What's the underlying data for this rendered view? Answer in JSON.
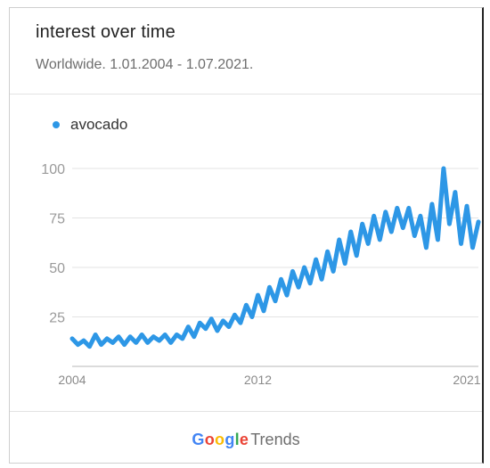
{
  "header": {
    "title": "interest over time",
    "subtitle": "Worldwide. 1.01.2004 - 1.07.2021."
  },
  "legend": {
    "label": "avocado",
    "color": "#2d97e6"
  },
  "footer": {
    "logo": "Google",
    "product": "Trends"
  },
  "chart_data": {
    "type": "line",
    "title": "interest over time",
    "subtitle": "Worldwide. 1.01.2004 - 1.07.2021.",
    "ylim": [
      0,
      100
    ],
    "xlim": [
      2004,
      2021.5
    ],
    "y_ticks": [
      "25",
      "50",
      "75",
      "100"
    ],
    "x_ticks": [
      "2004",
      "2012",
      "2021"
    ],
    "grid": true,
    "legend_position": "top-left",
    "series": [
      {
        "name": "avocado",
        "color": "#2d97e6",
        "x": [
          2004.0,
          2004.25,
          2004.5,
          2004.75,
          2005.0,
          2005.25,
          2005.5,
          2005.75,
          2006.0,
          2006.25,
          2006.5,
          2006.75,
          2007.0,
          2007.25,
          2007.5,
          2007.75,
          2008.0,
          2008.25,
          2008.5,
          2008.75,
          2009.0,
          2009.25,
          2009.5,
          2009.75,
          2010.0,
          2010.25,
          2010.5,
          2010.75,
          2011.0,
          2011.25,
          2011.5,
          2011.75,
          2012.0,
          2012.25,
          2012.5,
          2012.75,
          2013.0,
          2013.25,
          2013.5,
          2013.75,
          2014.0,
          2014.25,
          2014.5,
          2014.75,
          2015.0,
          2015.25,
          2015.5,
          2015.75,
          2016.0,
          2016.25,
          2016.5,
          2016.75,
          2017.0,
          2017.25,
          2017.5,
          2017.75,
          2018.0,
          2018.25,
          2018.5,
          2018.75,
          2019.0,
          2019.25,
          2019.5,
          2019.75,
          2020.0,
          2020.25,
          2020.5,
          2020.75,
          2021.0,
          2021.25,
          2021.5
        ],
        "values": [
          14,
          11,
          13,
          10,
          16,
          11,
          14,
          12,
          15,
          11,
          15,
          12,
          16,
          12,
          15,
          13,
          16,
          12,
          16,
          14,
          20,
          15,
          22,
          19,
          24,
          18,
          23,
          20,
          26,
          22,
          31,
          25,
          36,
          28,
          40,
          33,
          44,
          36,
          48,
          40,
          50,
          42,
          54,
          44,
          58,
          48,
          64,
          52,
          68,
          56,
          72,
          62,
          76,
          64,
          78,
          68,
          80,
          70,
          80,
          66,
          76,
          60,
          82,
          64,
          100,
          72,
          88,
          62,
          81,
          60,
          73
        ]
      }
    ]
  }
}
